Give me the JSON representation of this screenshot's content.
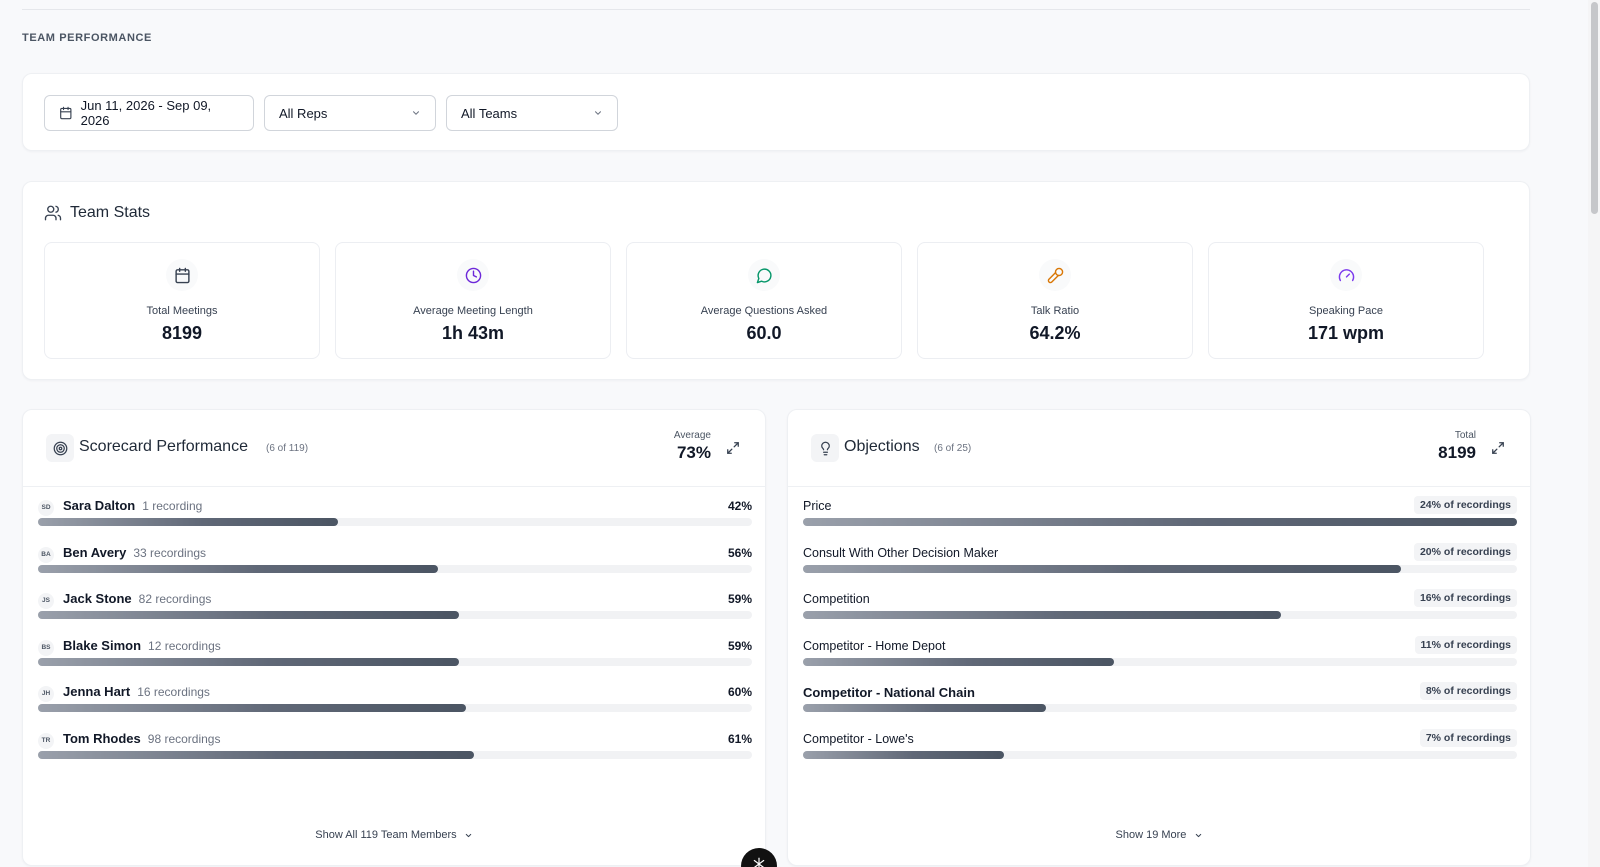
{
  "section_title": "TEAM PERFORMANCE",
  "filters": {
    "date_range": "Jun 11, 2026 - Sep 09, 2026",
    "reps": "All Reps",
    "teams": "All Teams"
  },
  "team_stats": {
    "title": "Team Stats",
    "items": [
      {
        "label": "Total Meetings",
        "value": "8199",
        "icon": "calendar-icon",
        "color": "#374151"
      },
      {
        "label": "Average Meeting Length",
        "value": "1h 43m",
        "icon": "clock-icon",
        "color": "#6d28d9"
      },
      {
        "label": "Average Questions Asked",
        "value": "60.0",
        "icon": "chat-icon",
        "color": "#059669"
      },
      {
        "label": "Talk Ratio",
        "value": "64.2%",
        "icon": "microphone-icon",
        "color": "#d97706"
      },
      {
        "label": "Speaking Pace",
        "value": "171 wpm",
        "icon": "gauge-icon",
        "color": "#7c3aed"
      }
    ]
  },
  "scorecard": {
    "title": "Scorecard Performance",
    "subtitle": "(6 of 119)",
    "agg_label": "Average",
    "agg_value": "73%",
    "rows": [
      {
        "initials": "SD",
        "name": "Sara Dalton",
        "meta": "1 recording",
        "pct_label": "42%",
        "value": 42
      },
      {
        "initials": "BA",
        "name": "Ben Avery",
        "meta": "33 recordings",
        "pct_label": "56%",
        "value": 56
      },
      {
        "initials": "JS",
        "name": "Jack Stone",
        "meta": "82 recordings",
        "pct_label": "59%",
        "value": 59
      },
      {
        "initials": "BS",
        "name": "Blake Simon",
        "meta": "12 recordings",
        "pct_label": "59%",
        "value": 59
      },
      {
        "initials": "JH",
        "name": "Jenna Hart",
        "meta": "16 recordings",
        "pct_label": "60%",
        "value": 60
      },
      {
        "initials": "TR",
        "name": "Tom Rhodes",
        "meta": "98 recordings",
        "pct_label": "61%",
        "value": 61
      }
    ],
    "show_more": "Show All 119 Team Members"
  },
  "objections": {
    "title": "Objections",
    "subtitle": "(6 of 25)",
    "agg_label": "Total",
    "agg_value": "8199",
    "rows": [
      {
        "name": "Price",
        "badge": "24% of recordings",
        "value": 100
      },
      {
        "name": "Consult With Other Decision Maker",
        "badge": "20% of recordings",
        "value": 83.7
      },
      {
        "name": "Competition",
        "badge": "16% of recordings",
        "value": 67
      },
      {
        "name": "Competitor - Home Depot",
        "badge": "11% of recordings",
        "value": 43.6
      },
      {
        "name": "Competitor - National Chain",
        "badge": "8% of recordings",
        "value": 34
      },
      {
        "name": "Competitor - Lowe's",
        "badge": "7% of recordings",
        "value": 28.2
      }
    ],
    "show_more": "Show 19 More"
  }
}
